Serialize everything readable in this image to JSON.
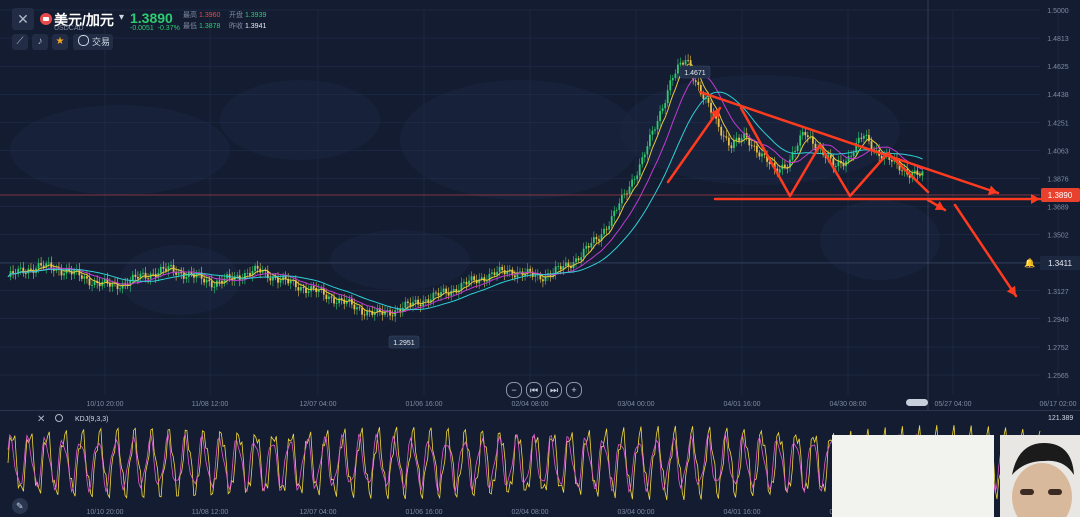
{
  "header": {
    "symbol": "美元/加元",
    "symbol_code": "USDCAD",
    "price": "1.3890",
    "change": "-0.0051",
    "change_pct": "-0.37%",
    "stats": {
      "high_label": "最高",
      "high": "1.3960",
      "open_label": "开盘",
      "open": "1.3939",
      "low_label": "最低",
      "low": "1.3878",
      "close_label": "昨收",
      "close": "1.3941"
    }
  },
  "toolbar": {
    "trade_label": "交易"
  },
  "price_axis": {
    "ticks": [
      "1.5000",
      "1.4813",
      "1.4625",
      "1.4438",
      "1.4251",
      "1.4063",
      "1.3876",
      "1.3689",
      "1.3502",
      "1.3314",
      "1.3127",
      "1.2940",
      "1.2752",
      "1.2565"
    ],
    "current_price_label": "1.3890",
    "alert_label": "1.3411"
  },
  "time_axis": {
    "ticks": [
      "10/10 20:00",
      "11/08 12:00",
      "12/07 04:00",
      "01/06 16:00",
      "02/04 08:00",
      "03/04 00:00",
      "04/01 16:00",
      "04/30 08:00",
      "05/27 04:00",
      "06/17 02:00"
    ]
  },
  "kdj": {
    "label": "KDJ(9,3,3)",
    "value_label": "121.389",
    "axis_ticks": [
      "10/10 20:00",
      "11/08 12:00",
      "12/07 04:00",
      "01/06 16:00",
      "02/04 08:00",
      "03/04 00:00",
      "04/01 16:00",
      "04/30 08:00"
    ],
    "series": [
      {
        "color": "#f2d83b"
      },
      {
        "color": "#e05ad4"
      }
    ]
  },
  "annotations": {
    "high_label": "1.4671",
    "low_label": "1.2951"
  },
  "colors": {
    "background": "#131c31",
    "up": "#2ecc71",
    "down": "#e84a4a",
    "drawing": "#ff3b1f",
    "ma_fast": "#e6c93a",
    "ma_mid": "#c23ad1",
    "ma_slow": "#2fd0d6",
    "candle_up": "#2ecc71",
    "candle_down": "#e8c14a"
  },
  "chart_data": {
    "type": "candlestick",
    "xlabel": "",
    "ylabel": "",
    "ylim": [
      1.2565,
      1.5
    ],
    "close_series": [
      1.322,
      1.326,
      1.329,
      1.328,
      1.326,
      1.322,
      1.318,
      1.316,
      1.318,
      1.322,
      1.325,
      1.327,
      1.324,
      1.321,
      1.318,
      1.32,
      1.324,
      1.326,
      1.322,
      1.318,
      1.315,
      1.312,
      1.308,
      1.304,
      1.3,
      1.297,
      1.299,
      1.302,
      1.306,
      1.309,
      1.313,
      1.317,
      1.321,
      1.324,
      1.326,
      1.324,
      1.322,
      1.325,
      1.33,
      1.338,
      1.348,
      1.362,
      1.38,
      1.4,
      1.425,
      1.455,
      1.467,
      1.445,
      1.425,
      1.41,
      1.415,
      1.405,
      1.392,
      1.4,
      1.418,
      1.408,
      1.395,
      1.402,
      1.416,
      1.405,
      1.398,
      1.392,
      1.389
    ]
  }
}
